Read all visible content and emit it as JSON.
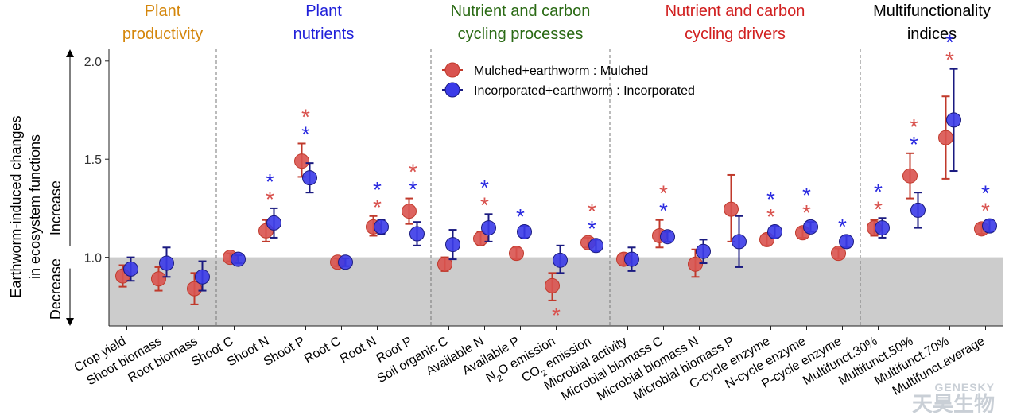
{
  "chart_data": {
    "type": "scatter",
    "ylabel_line1": "Earthworm-induced changes",
    "ylabel_line2": "in ecosystem functions",
    "arrow_up_label": "Increase",
    "arrow_down_label": "Decrease",
    "ylim": [
      0.65,
      2.06
    ],
    "yticks": [
      1.0,
      1.5,
      2.0
    ],
    "ytick_labels": [
      "1.0",
      "1.5",
      "2.0"
    ],
    "baseline": 1.0,
    "categories": [
      "Crop yield",
      "Shoot biomass",
      "Root biomass",
      "Shoot C",
      "Shoot N",
      "Shoot P",
      "Root C",
      "Root N",
      "Root P",
      "Soil organic C",
      "Available N",
      "Available P",
      "N2O emission",
      "CO2 emission",
      "Microbial activity",
      "Microbial biomass C",
      "Microbial biomass N",
      "Microbial biomass P",
      "C-cycle enzyme",
      "N-cycle enzyme",
      "P-cycle enzyme",
      "Multifunct.30%",
      "Multifunct.50%",
      "Multifunct.70%",
      "Multifunct.average"
    ],
    "groups": [
      {
        "label_line1": "Plant",
        "label_line2": "productivity",
        "color": "#d4860b",
        "start": 0,
        "end": 2
      },
      {
        "label_line1": "Plant",
        "label_line2": "nutrients",
        "color": "#1f1fd9",
        "start": 3,
        "end": 8
      },
      {
        "label_line1": "Nutrient and carbon",
        "label_line2": "cycling processes",
        "color": "#2a6a14",
        "start": 9,
        "end": 13
      },
      {
        "label_line1": "Nutrient and carbon",
        "label_line2": "cycling drivers",
        "color": "#d11f1f",
        "start": 14,
        "end": 20
      },
      {
        "label_line1": "Multifunctionality",
        "label_line2": "indices",
        "color": "#000000",
        "start": 21,
        "end": 24
      }
    ],
    "series": [
      {
        "name": "Mulched+earthworm : Mulched",
        "color": "#d9534f",
        "bar_color": "#c0392b",
        "star_color": "#d9534f",
        "values": [
          0.905,
          0.89,
          0.84,
          1.0,
          1.135,
          1.49,
          0.975,
          1.155,
          1.235,
          0.965,
          1.095,
          1.02,
          0.855,
          1.075,
          0.99,
          1.11,
          0.965,
          1.245,
          1.09,
          1.125,
          1.02,
          1.15,
          1.415,
          1.61,
          1.145
        ],
        "lower": [
          0.85,
          0.83,
          0.76,
          0.98,
          1.08,
          1.41,
          0.955,
          1.11,
          1.17,
          0.93,
          1.06,
          0.99,
          0.78,
          1.05,
          0.96,
          1.05,
          0.9,
          1.08,
          1.06,
          1.1,
          0.995,
          1.11,
          1.3,
          1.4,
          1.12
        ],
        "upper": [
          0.96,
          0.95,
          0.92,
          1.02,
          1.19,
          1.58,
          0.995,
          1.21,
          1.3,
          1.0,
          1.13,
          1.05,
          0.92,
          1.1,
          1.02,
          1.19,
          1.04,
          1.42,
          1.12,
          1.15,
          1.045,
          1.19,
          1.53,
          1.82,
          1.17
        ],
        "stars": [
          false,
          false,
          false,
          false,
          true,
          true,
          false,
          true,
          true,
          false,
          true,
          false,
          true,
          true,
          false,
          true,
          false,
          false,
          true,
          true,
          false,
          true,
          true,
          true,
          true
        ],
        "star_below": [
          false,
          false,
          false,
          false,
          false,
          false,
          false,
          false,
          false,
          false,
          false,
          false,
          true,
          false,
          false,
          false,
          false,
          false,
          false,
          false,
          false,
          false,
          false,
          false,
          false
        ]
      },
      {
        "name": "Incorporated+earthworm : Incorporated",
        "color": "#3b3be8",
        "bar_color": "#1a1a80",
        "star_color": "#2a2ae0",
        "values": [
          0.94,
          0.97,
          0.9,
          0.99,
          1.175,
          1.405,
          0.975,
          1.155,
          1.12,
          1.065,
          1.15,
          1.13,
          0.985,
          1.06,
          0.99,
          1.105,
          1.03,
          1.08,
          1.13,
          1.155,
          1.08,
          1.15,
          1.24,
          1.7,
          1.16
        ],
        "lower": [
          0.88,
          0.9,
          0.83,
          0.97,
          1.1,
          1.33,
          0.955,
          1.12,
          1.06,
          0.99,
          1.08,
          1.1,
          0.92,
          1.03,
          0.93,
          1.08,
          0.97,
          0.95,
          1.1,
          1.13,
          1.05,
          1.1,
          1.15,
          1.44,
          1.13
        ],
        "upper": [
          1.0,
          1.05,
          0.98,
          1.01,
          1.25,
          1.48,
          0.995,
          1.19,
          1.18,
          1.14,
          1.22,
          1.16,
          1.06,
          1.09,
          1.05,
          1.13,
          1.09,
          1.21,
          1.16,
          1.18,
          1.11,
          1.2,
          1.33,
          1.96,
          1.19
        ],
        "stars": [
          false,
          false,
          false,
          false,
          true,
          true,
          false,
          true,
          true,
          false,
          true,
          true,
          false,
          true,
          false,
          true,
          false,
          false,
          true,
          true,
          true,
          true,
          true,
          true,
          true
        ],
        "star_below": [
          false,
          false,
          false,
          false,
          false,
          false,
          false,
          false,
          false,
          false,
          false,
          false,
          false,
          false,
          false,
          false,
          false,
          false,
          false,
          false,
          false,
          false,
          false,
          false,
          false
        ]
      }
    ],
    "legend_position": "top-center",
    "grid": false
  },
  "watermark": {
    "en": "GENESKY",
    "cn": "天昊生物"
  }
}
